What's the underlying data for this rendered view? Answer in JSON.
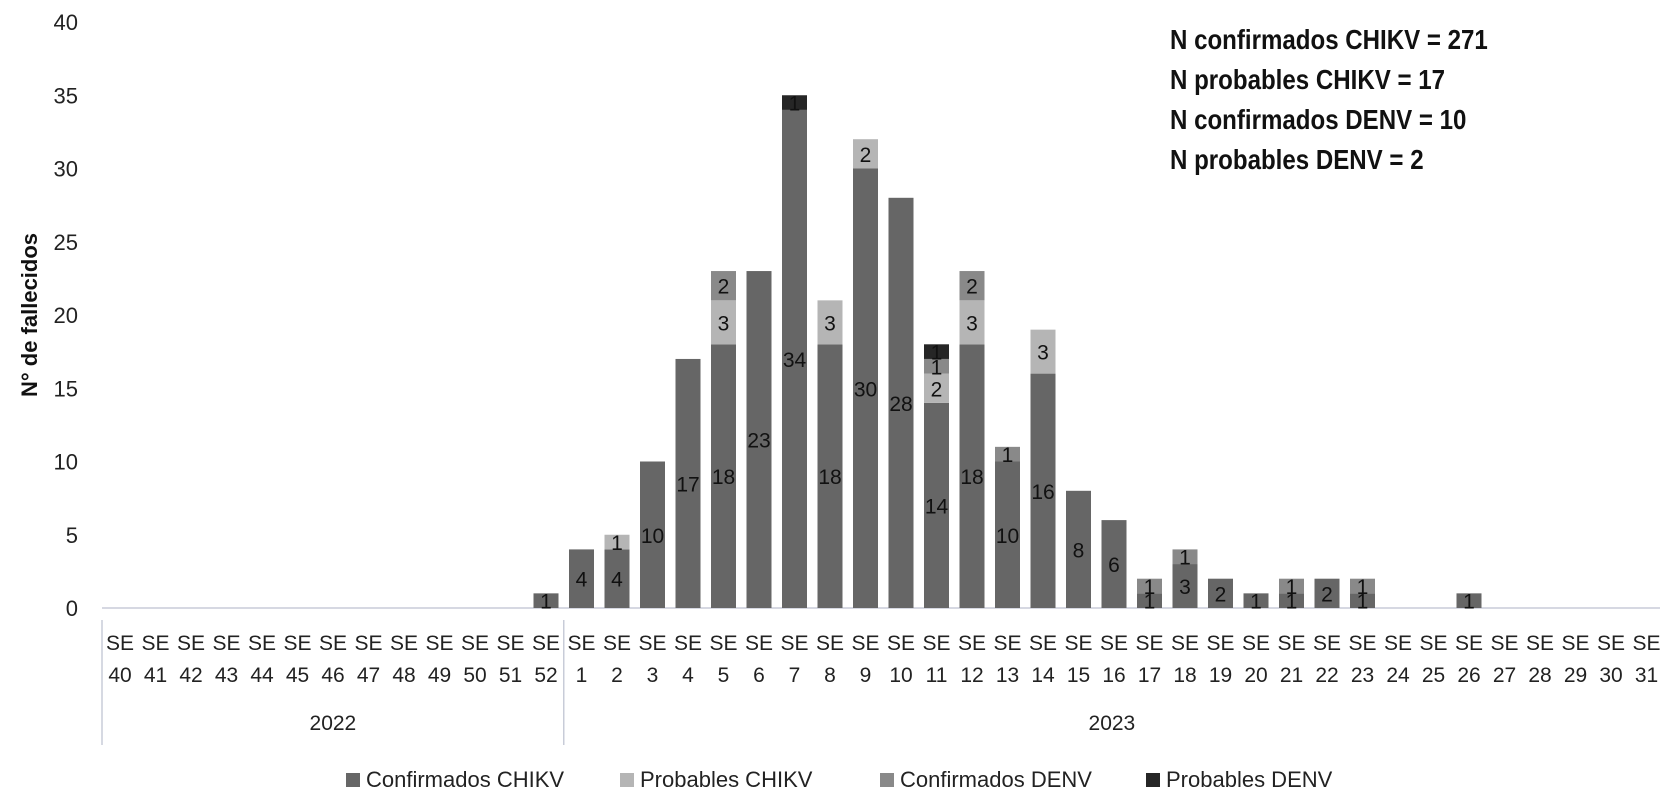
{
  "chart_data": {
    "type": "bar",
    "stacked": true,
    "ylabel": "N° de fallecidos",
    "ylim": [
      0,
      40
    ],
    "yticks": [
      0,
      5,
      10,
      15,
      20,
      25,
      30,
      35,
      40
    ],
    "grid": false,
    "legend_position": "bottom",
    "categories": [
      "SE 40",
      "SE 41",
      "SE 42",
      "SE 43",
      "SE 44",
      "SE 45",
      "SE 46",
      "SE 47",
      "SE 48",
      "SE 49",
      "SE 50",
      "SE 51",
      "SE 52",
      "SE 1",
      "SE 2",
      "SE 3",
      "SE 4",
      "SE 5",
      "SE 6",
      "SE 7",
      "SE 8",
      "SE 9",
      "SE 10",
      "SE 11",
      "SE 12",
      "SE 13",
      "SE 14",
      "SE 15",
      "SE 16",
      "SE 17",
      "SE 18",
      "SE 19",
      "SE 20",
      "SE 21",
      "SE 22",
      "SE 23",
      "SE 24",
      "SE 25",
      "SE 26",
      "SE 27",
      "SE 28",
      "SE 29",
      "SE 30",
      "SE 31"
    ],
    "year_groups": [
      {
        "label": "2022",
        "start": 0,
        "end": 12
      },
      {
        "label": "2023",
        "start": 13,
        "end": 43
      }
    ],
    "series": [
      {
        "name": "Confirmados CHIKV",
        "color": "#666666",
        "values": [
          0,
          0,
          0,
          0,
          0,
          0,
          0,
          0,
          0,
          0,
          0,
          0,
          1,
          4,
          4,
          10,
          17,
          18,
          23,
          34,
          18,
          30,
          28,
          14,
          18,
          10,
          16,
          8,
          6,
          1,
          3,
          2,
          1,
          1,
          2,
          1,
          0,
          0,
          1,
          0,
          0,
          0,
          0,
          0
        ]
      },
      {
        "name": "Probables CHIKV",
        "color": "#b5b5b5",
        "values": [
          0,
          0,
          0,
          0,
          0,
          0,
          0,
          0,
          0,
          0,
          0,
          0,
          0,
          0,
          1,
          0,
          0,
          3,
          0,
          0,
          3,
          2,
          0,
          2,
          3,
          0,
          3,
          0,
          0,
          0,
          0,
          0,
          0,
          0,
          0,
          0,
          0,
          0,
          0,
          0,
          0,
          0,
          0,
          0
        ]
      },
      {
        "name": "Confirmados DENV",
        "color": "#898989",
        "values": [
          0,
          0,
          0,
          0,
          0,
          0,
          0,
          0,
          0,
          0,
          0,
          0,
          0,
          0,
          0,
          0,
          0,
          2,
          0,
          0,
          0,
          0,
          0,
          1,
          2,
          1,
          0,
          0,
          0,
          1,
          1,
          0,
          0,
          1,
          0,
          1,
          0,
          0,
          0,
          0,
          0,
          0,
          0,
          0
        ]
      },
      {
        "name": "Probables DENV",
        "color": "#262626",
        "values": [
          0,
          0,
          0,
          0,
          0,
          0,
          0,
          0,
          0,
          0,
          0,
          0,
          0,
          0,
          0,
          0,
          0,
          0,
          0,
          1,
          0,
          0,
          0,
          1,
          0,
          0,
          0,
          0,
          0,
          0,
          0,
          0,
          0,
          0,
          0,
          0,
          0,
          0,
          0,
          0,
          0,
          0,
          0,
          0
        ]
      }
    ],
    "annotations": [
      "N confirmados CHIKV = 271",
      "N probables CHIKV = 17",
      "N confirmados DENV = 10",
      "N probables DENV = 2"
    ]
  }
}
